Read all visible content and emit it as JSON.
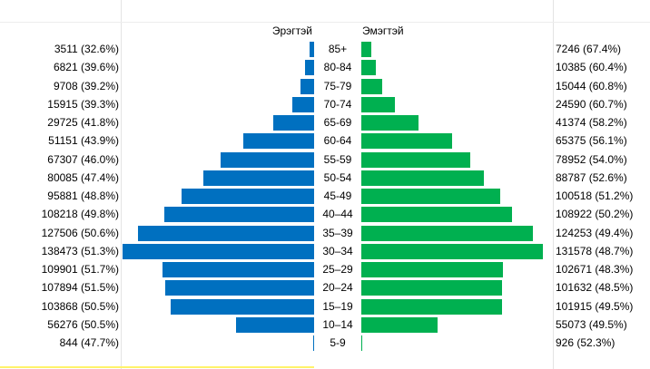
{
  "chart_data": {
    "type": "bar",
    "orientation": "horizontal",
    "layout": "population-pyramid",
    "categories": [
      "85+",
      "80-84",
      "75-79",
      "70-74",
      "65-69",
      "60-64",
      "55-59",
      "50-54",
      "45-49",
      "40–44",
      "35–39",
      "30–34",
      "25–29",
      "20–24",
      "15–19",
      "10–14",
      "5-9"
    ],
    "series": [
      {
        "name": "Эрэгтэй",
        "color": "#0070c0",
        "values": [
          3511,
          6821,
          9708,
          15915,
          29725,
          51151,
          67307,
          80085,
          95881,
          108218,
          127506,
          138473,
          109901,
          107894,
          103868,
          56276,
          844
        ],
        "labels": [
          "3511 (32.6%)",
          "6821 (39.6%)",
          "9708 (39.2%)",
          "15915 (39.3%)",
          "29725 (41.8%)",
          "51151 (43.9%)",
          "67307 (46.0%)",
          "80085 (47.4%)",
          "95881 (48.8%)",
          "108218 (49.8%)",
          "127506 (50.6%)",
          "138473 (51.3%)",
          "109901 (51.7%)",
          "107894 (51.5%)",
          "103868 (50.5%)",
          "56276 (50.5%)",
          "844 (47.7%)"
        ]
      },
      {
        "name": "Эмэгтэй",
        "color": "#00b050",
        "values": [
          7246,
          10385,
          15044,
          24590,
          41374,
          65375,
          78952,
          88787,
          100518,
          108922,
          124253,
          131578,
          102671,
          101632,
          101915,
          55073,
          926
        ],
        "labels": [
          "7246 (67.4%)",
          "10385 (60.4%)",
          "15044 (60.8%)",
          "24590 (60.7%)",
          "41374 (58.2%)",
          "65375 (56.1%)",
          "78952 (54.0%)",
          "88787 (52.6%)",
          "100518 (51.2%)",
          "108922 (50.2%)",
          "124253 (49.4%)",
          "131578 (48.7%)",
          "102671 (48.3%)",
          "101632 (48.5%)",
          "101915 (49.5%)",
          "55073 (49.5%)",
          "926 (52.3%)"
        ]
      }
    ],
    "xlim": [
      0,
      138473
    ]
  }
}
